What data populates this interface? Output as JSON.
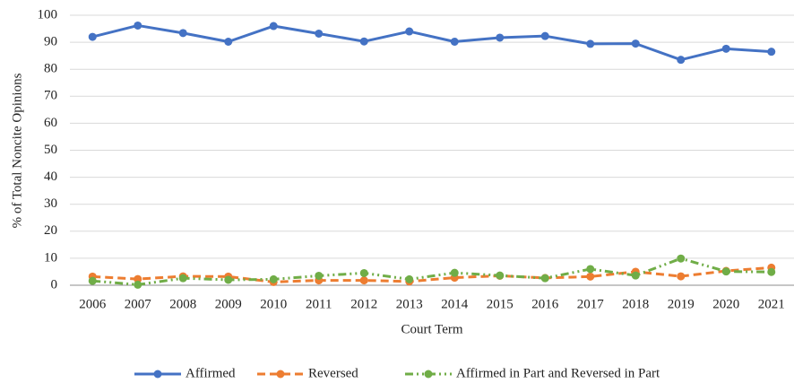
{
  "chart_data": {
    "type": "line",
    "ylabel": "% of Total Noncite Opinions",
    "xlabel": "Court Term",
    "categories": [
      "2006",
      "2007",
      "2008",
      "2009",
      "2010",
      "2011",
      "2012",
      "2013",
      "2014",
      "2015",
      "2016",
      "2017",
      "2018",
      "2019",
      "2020",
      "2021"
    ],
    "series": [
      {
        "name": "Affirmed",
        "color": "#4472c4",
        "line_style": "solid",
        "values": [
          92,
          96.2,
          93.4,
          90.2,
          96,
          93.2,
          90.3,
          94,
          90.2,
          91.7,
          92.3,
          89.4,
          89.5,
          83.5,
          87.6,
          86.5
        ]
      },
      {
        "name": "Reversed",
        "color": "#ed7d31",
        "line_style": "dashed",
        "values": [
          3.2,
          2.3,
          3.3,
          3.2,
          1.2,
          1.8,
          1.8,
          1.4,
          2.8,
          3.5,
          2.7,
          3.2,
          5,
          3.3,
          5.3,
          6.5
        ]
      },
      {
        "name": "Affirmed in Part and Reversed in Part",
        "color": "#70ad47",
        "line_style": "dashdotdot",
        "values": [
          1.6,
          0.2,
          2.6,
          2.0,
          2.2,
          3.5,
          4.5,
          2.2,
          4.6,
          3.6,
          2.6,
          6.0,
          3.6,
          9.9,
          5.1,
          4.9
        ]
      }
    ],
    "ylim": [
      0,
      100
    ],
    "yticks": [
      0,
      10,
      20,
      30,
      40,
      50,
      60,
      70,
      80,
      90,
      100
    ],
    "grid": true,
    "legend": "bottom"
  }
}
